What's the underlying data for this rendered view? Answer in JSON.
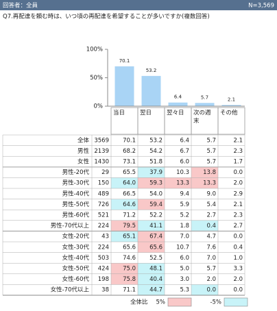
{
  "header": {
    "respondents": "回答者：全員",
    "n": "N=3,569"
  },
  "question": "Q7.再配達を頼む時は、いつ頃の再配達を希望することが多いですか(複数回答)",
  "chart_data": {
    "type": "bar",
    "categories": [
      "当日",
      "翌日",
      "翌々日",
      "次の週末",
      "その他"
    ],
    "values": [
      70.1,
      53.2,
      6.4,
      5.7,
      2.1
    ],
    "color": "#a9d4f5",
    "ylim": [
      0,
      100
    ],
    "yticks": [
      {
        "value": 0,
        "label": "0%"
      },
      {
        "value": 50,
        "label": "50%"
      },
      {
        "value": 100,
        "label": "100%"
      }
    ],
    "grid": false
  },
  "table": {
    "rows": [
      [
        "全体",
        "3569",
        "70.1",
        "53.2",
        "6.4",
        "5.7",
        "2.1"
      ],
      [
        "男性",
        "2139",
        "68.2",
        "54.2",
        "6.7",
        "5.7",
        "2.3"
      ],
      [
        "女性",
        "1430",
        "73.1",
        "51.8",
        "6.0",
        "5.7",
        "1.7"
      ],
      [
        "男性-20代",
        "29",
        "65.5",
        "37.9",
        "10.3",
        "13.8",
        "0.0"
      ],
      [
        "男性-30代",
        "150",
        "64.0",
        "59.3",
        "13.3",
        "13.3",
        "2.0"
      ],
      [
        "男性-40代",
        "489",
        "66.5",
        "54.0",
        "9.4",
        "9.0",
        "2.9"
      ],
      [
        "男性-50代",
        "726",
        "64.6",
        "59.4",
        "5.9",
        "5.4",
        "2.1"
      ],
      [
        "男性-60代",
        "521",
        "71.2",
        "52.2",
        "5.2",
        "2.7",
        "2.3"
      ],
      [
        "男性-70代以上",
        "224",
        "79.5",
        "41.1",
        "1.8",
        "0.4",
        "2.7"
      ],
      [
        "女性-20代",
        "43",
        "65.1",
        "67.4",
        "7.0",
        "4.7",
        "0.0"
      ],
      [
        "女性-30代",
        "224",
        "65.6",
        "65.6",
        "10.7",
        "7.6",
        "0.4"
      ],
      [
        "女性-40代",
        "503",
        "74.6",
        "52.5",
        "6.0",
        "7.0",
        "1.0"
      ],
      [
        "女性-50代",
        "424",
        "75.0",
        "48.1",
        "5.0",
        "5.7",
        "3.3"
      ],
      [
        "女性-60代",
        "198",
        "75.8",
        "40.4",
        "3.0",
        "2.0",
        "2.0"
      ],
      [
        "女性-70代以上",
        "38",
        "71.1",
        "44.7",
        "5.3",
        "0.0",
        "0.0"
      ]
    ],
    "highlights": [
      [
        null,
        null,
        null,
        null,
        null
      ],
      [
        null,
        null,
        null,
        null,
        null
      ],
      [
        null,
        null,
        null,
        null,
        null
      ],
      [
        null,
        "#c8f3f8",
        null,
        "#f9c8c8",
        null
      ],
      [
        "#c8f3f8",
        "#f9c8c8",
        "#f9c8c8",
        "#f9c8c8",
        null
      ],
      [
        null,
        null,
        null,
        null,
        null
      ],
      [
        "#c8f3f8",
        "#f9c8c8",
        null,
        null,
        null
      ],
      [
        null,
        null,
        null,
        null,
        null
      ],
      [
        "#f9c8c8",
        "#c8f3f8",
        null,
        "#c8f3f8",
        null
      ],
      [
        "#c8f3f8",
        "#f9c8c8",
        null,
        null,
        null
      ],
      [
        null,
        "#f9c8c8",
        null,
        null,
        null
      ],
      [
        null,
        null,
        null,
        null,
        null
      ],
      [
        "#f9c8c8",
        "#c8f3f8",
        null,
        null,
        null
      ],
      [
        "#f9c8c8",
        "#c8f3f8",
        null,
        null,
        null
      ],
      [
        null,
        "#c8f3f8",
        null,
        "#c8f3f8",
        null
      ]
    ],
    "group_breaks": [
      3,
      9
    ]
  },
  "legend": {
    "title": "全体比",
    "items": [
      {
        "label": "5%",
        "color": "#f9c8c8"
      },
      {
        "label": "-5%",
        "color": "#c8f3f8"
      }
    ]
  }
}
